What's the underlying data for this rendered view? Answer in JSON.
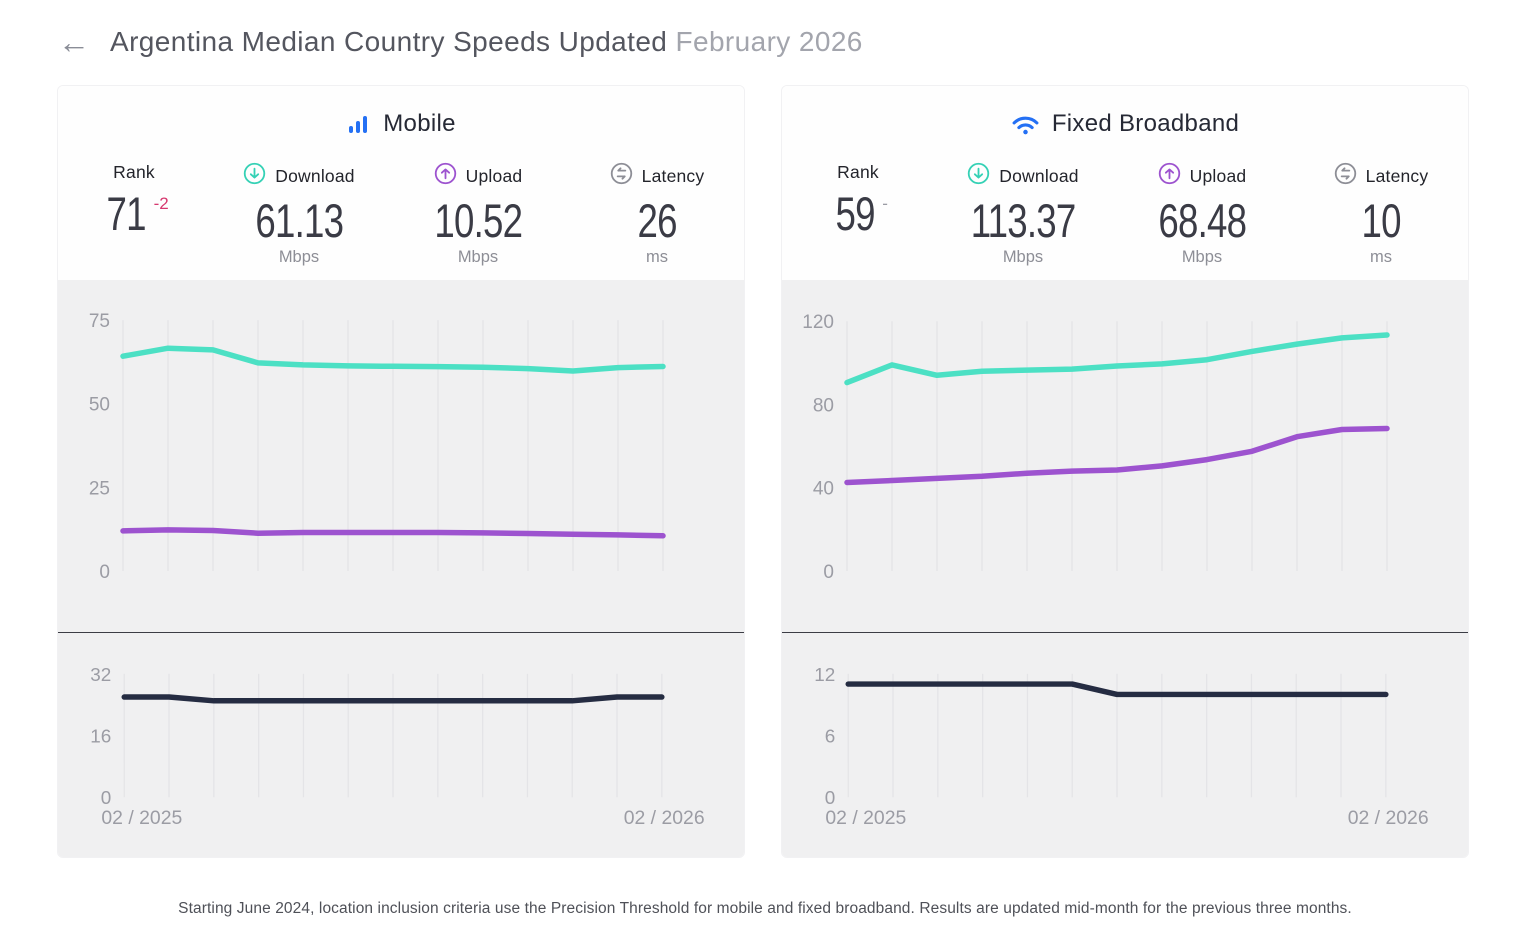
{
  "header": {
    "back_label": "←",
    "title": "Argentina Median Country Speeds Updated",
    "period": "February 2026"
  },
  "cards": [
    {
      "title": "Mobile",
      "icon": "mobile-signal-bars",
      "stats": {
        "rank": {
          "label": "Rank",
          "value": "71",
          "change": "-2",
          "change_color": "#d6396f"
        },
        "download": {
          "label": "Download",
          "value": "61.13",
          "unit": "Mbps"
        },
        "upload": {
          "label": "Upload",
          "value": "10.52",
          "unit": "Mbps"
        },
        "latency": {
          "label": "Latency",
          "value": "26",
          "unit": "ms"
        }
      }
    },
    {
      "title": "Fixed Broadband",
      "icon": "wifi",
      "stats": {
        "rank": {
          "label": "Rank",
          "value": "59",
          "change": "-",
          "change_color": "#9b9ca4"
        },
        "download": {
          "label": "Download",
          "value": "113.37",
          "unit": "Mbps"
        },
        "upload": {
          "label": "Upload",
          "value": "68.48",
          "unit": "Mbps"
        },
        "latency": {
          "label": "Latency",
          "value": "10",
          "unit": "ms"
        }
      }
    }
  ],
  "chart_data": [
    {
      "type": "line",
      "panel": "speed",
      "card": "Mobile",
      "title": "Mobile download and upload speed, monthly",
      "x_start_label": "02 / 2025",
      "x_end_label": "02 / 2026",
      "x_points": 13,
      "ylim": [
        0,
        84
      ],
      "yticks": [
        0,
        25,
        50,
        75
      ],
      "grid": true,
      "legend": "none",
      "series": [
        {
          "name": "Download (Mbps)",
          "color": "#4ce0c4",
          "values": [
            64.2,
            66.6,
            66.1,
            62.2,
            61.6,
            61.3,
            61.2,
            61.1,
            60.9,
            60.5,
            59.8,
            60.8,
            61.13
          ]
        },
        {
          "name": "Upload (Mbps)",
          "color": "#9d53cf",
          "values": [
            12.0,
            12.3,
            12.1,
            11.3,
            11.5,
            11.5,
            11.5,
            11.5,
            11.4,
            11.2,
            11.0,
            10.8,
            10.52
          ]
        }
      ]
    },
    {
      "type": "line",
      "panel": "latency",
      "card": "Mobile",
      "title": "Mobile latency, monthly",
      "x_start_label": "02 / 2025",
      "x_end_label": "02 / 2026",
      "x_points": 13,
      "ylim": [
        0,
        40
      ],
      "yticks": [
        0,
        16,
        32
      ],
      "grid": true,
      "legend": "none",
      "series": [
        {
          "name": "Latency (ms)",
          "color": "#252c42",
          "values": [
            26,
            26,
            25,
            25,
            25,
            25,
            25,
            25,
            25,
            25,
            25,
            26,
            26
          ]
        }
      ]
    },
    {
      "type": "line",
      "panel": "speed",
      "card": "Fixed Broadband",
      "title": "Fixed broadband download and upload speed, monthly",
      "x_start_label": "02 / 2025",
      "x_end_label": "02 / 2026",
      "x_points": 13,
      "ylim": [
        0,
        135
      ],
      "yticks": [
        0,
        40,
        80,
        120
      ],
      "grid": true,
      "legend": "none",
      "series": [
        {
          "name": "Download (Mbps)",
          "color": "#4ce0c4",
          "values": [
            90.5,
            99.0,
            94.0,
            96.0,
            96.5,
            97.0,
            98.5,
            99.5,
            101.5,
            105.5,
            109.0,
            112.0,
            113.37
          ]
        },
        {
          "name": "Upload (Mbps)",
          "color": "#9d53cf",
          "values": [
            42.5,
            43.5,
            44.5,
            45.5,
            47.0,
            48.0,
            48.5,
            50.5,
            53.5,
            57.5,
            64.5,
            68.0,
            68.48
          ]
        }
      ]
    },
    {
      "type": "line",
      "panel": "latency",
      "card": "Fixed Broadband",
      "title": "Fixed broadband latency, monthly",
      "x_start_label": "02 / 2025",
      "x_end_label": "02 / 2026",
      "x_points": 13,
      "ylim": [
        0,
        15
      ],
      "yticks": [
        0,
        6,
        12
      ],
      "grid": true,
      "legend": "none",
      "series": [
        {
          "name": "Latency (ms)",
          "color": "#252c42",
          "values": [
            11,
            11,
            11,
            11,
            11,
            11,
            10,
            10,
            10,
            10,
            10,
            10,
            10
          ]
        }
      ]
    }
  ],
  "footer": {
    "text": "Starting June 2024, location inclusion criteria use the Precision Threshold for mobile and fixed broadband. Results are updated mid-month for the previous three months."
  },
  "colors": {
    "download_line": "#4ce0c4",
    "upload_line": "#9d53cf",
    "latency_line": "#252c42",
    "accent_blue": "#2470f4",
    "rank_change_negative": "#d6396f",
    "chart_background": "#f0f0f1",
    "gridline": "#e4e4e7"
  }
}
